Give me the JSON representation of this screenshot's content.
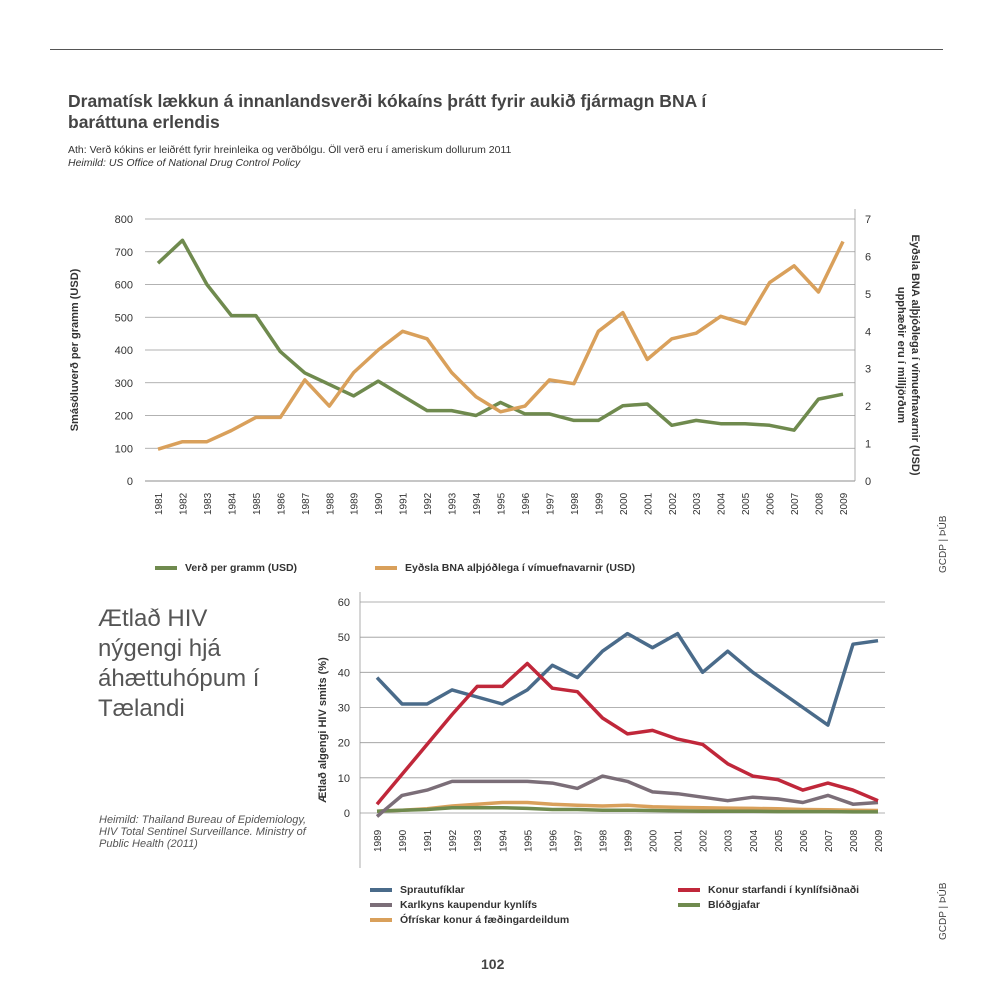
{
  "page": {
    "title": "Dramatísk lækkun á innanlandsverði kókaíns þrátt fyrir aukið fjármagn BNA í baráttuna erlendis",
    "note": "Ath: Verð kókins er leiðrétt fyrir hreinleika og verðbólgu. Öll verð eru í ameriskum dollurum 2011",
    "source": "Heimild: US Office of National Drug Control Policy",
    "credit_top": "GCDP | ÞÚB",
    "credit_bottom": "GCDP | ÞÚB",
    "page_number": "102",
    "hiv_title": "Ætlað HIV nýgengi hjá áhættuhópum í Tælandi",
    "hiv_source": "Heimild: Thailand Bureau of Epidemiology, HIV Total Sentinel Surveillance. Ministry of Public Health (2011)"
  },
  "chart_data": [
    {
      "type": "line",
      "x": [
        "1981",
        "1982",
        "1983",
        "1984",
        "1985",
        "1986",
        "1987",
        "1988",
        "1989",
        "1990",
        "1991",
        "1992",
        "1993",
        "1994",
        "1995",
        "1996",
        "1997",
        "1998",
        "1999",
        "2000",
        "2001",
        "2002",
        "2003",
        "2004",
        "2005",
        "2006",
        "2007",
        "2008",
        "2009"
      ],
      "ylabel": "Smásöluverð per gramm (USD)",
      "y2label": "Eyðsla BNA alþjóðlega í vímuefnavarnir (USD) upphæðir eru í milljörðum",
      "ylim": [
        0,
        800
      ],
      "yticks": [
        0,
        100,
        200,
        300,
        400,
        500,
        600,
        700,
        800
      ],
      "y2lim": [
        0,
        7
      ],
      "y2ticks": [
        0,
        1,
        2,
        3,
        4,
        5,
        6,
        7
      ],
      "grid": true,
      "legend_position": "bottom",
      "series": [
        {
          "name": "Verð per gramm (USD)",
          "axis": "left",
          "color": "#6f8a4e",
          "values": [
            665,
            735,
            600,
            505,
            505,
            395,
            330,
            295,
            260,
            305,
            260,
            215,
            215,
            200,
            240,
            205,
            205,
            185,
            185,
            230,
            235,
            170,
            185,
            175,
            175,
            170,
            155,
            250,
            265
          ]
        },
        {
          "name": "Eyðsla BNA alþjóðlega í vímuefnavarnir (USD)",
          "axis": "right",
          "color": "#d9a05b",
          "values": [
            0.85,
            1.05,
            1.05,
            1.35,
            1.7,
            1.7,
            2.7,
            2.0,
            2.9,
            3.5,
            4.0,
            3.8,
            2.9,
            2.25,
            1.85,
            2.0,
            2.7,
            2.6,
            4.0,
            4.5,
            3.25,
            3.8,
            3.95,
            4.4,
            4.2,
            5.3,
            5.75,
            5.05,
            6.4
          ]
        }
      ]
    },
    {
      "type": "line",
      "x": [
        "1989",
        "1990",
        "1991",
        "1992",
        "1993",
        "1994",
        "1995",
        "1996",
        "1997",
        "1998",
        "1999",
        "2000",
        "2001",
        "2002",
        "2003",
        "2004",
        "2005",
        "2006",
        "2007",
        "2008",
        "2009"
      ],
      "ylabel": "Ætlað algengi HIV smits (%)",
      "ylim": [
        0,
        60
      ],
      "yticks": [
        0,
        10,
        20,
        30,
        40,
        50,
        60
      ],
      "grid": true,
      "legend_position": "bottom",
      "series": [
        {
          "name": "Sprautufíklar",
          "color": "#4a6b8a",
          "values": [
            38.5,
            31,
            31,
            35,
            33,
            31,
            35,
            42,
            38.5,
            46,
            51,
            47,
            51,
            40,
            46,
            40,
            35,
            30,
            25,
            48,
            49
          ]
        },
        {
          "name": "Konur starfandi í kynlífsiðnaði",
          "color": "#c0273a",
          "values": [
            2.5,
            11,
            19.5,
            28,
            36,
            36,
            42.5,
            35.5,
            34.5,
            27,
            22.5,
            23.5,
            21,
            19.5,
            14,
            10.5,
            9.5,
            6.5,
            8.5,
            6.5,
            3.5
          ]
        },
        {
          "name": "Karlkyns kaupendur kynlífs",
          "color": "#7b6e78",
          "values": [
            -1,
            5,
            6.5,
            9,
            9,
            9,
            9,
            8.5,
            7,
            10.5,
            9,
            6,
            5.5,
            4.5,
            3.5,
            4.5,
            4,
            3,
            5,
            2.5,
            3
          ]
        },
        {
          "name": "Blóðgjafar",
          "color": "#6f8a4e",
          "values": [
            0.5,
            0.8,
            1,
            1.5,
            1.5,
            1.5,
            1.3,
            1,
            1,
            0.8,
            0.8,
            0.7,
            0.6,
            0.5,
            0.5,
            0.5,
            0.4,
            0.4,
            0.4,
            0.3,
            0.3
          ]
        },
        {
          "name": "Ófrískar konur á fæðingardeildum",
          "color": "#d9a05b",
          "values": [
            0.5,
            0.8,
            1.2,
            2,
            2.5,
            3,
            3,
            2.5,
            2.2,
            2,
            2.2,
            1.8,
            1.6,
            1.5,
            1.4,
            1.3,
            1.2,
            1,
            0.9,
            0.8,
            0.7
          ]
        }
      ]
    }
  ]
}
